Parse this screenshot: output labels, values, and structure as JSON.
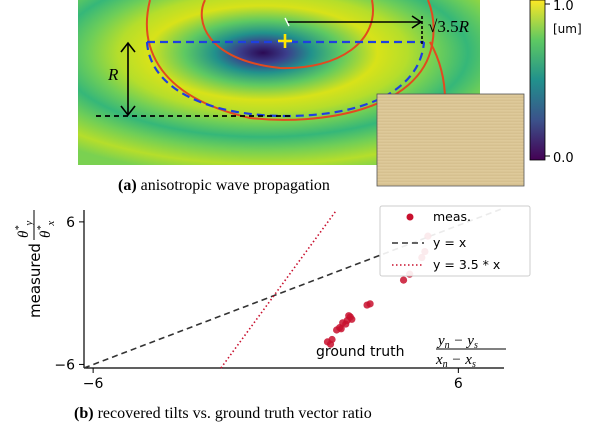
{
  "panel_a": {
    "label": "(a)",
    "caption": "anisotropic wave propagation",
    "annotation_sqrt": "√3.5",
    "annotation_sqrt_r": "R",
    "annotation_r": "R",
    "colorbar": {
      "max_label": "1.0",
      "min_label": "0.0",
      "unit": "[um]",
      "colors": [
        "#440154",
        "#3b528b",
        "#21918c",
        "#5ec962",
        "#fde725"
      ]
    }
  },
  "panel_b": {
    "label": "(b)",
    "caption": "recovered tilts vs. ground truth vector ratio",
    "ylabel_prefix": "measured",
    "xlabel_prefix": "ground truth",
    "chart_data": {
      "type": "scatter",
      "xlim": [
        -6.3,
        7.5
      ],
      "ylim": [
        -6.3,
        7.0
      ],
      "xticks": [
        -6,
        6
      ],
      "yticks": [
        -6,
        6
      ],
      "xtick_labels": [
        "−6",
        "6"
      ],
      "ytick_labels": [
        "−6",
        "6"
      ],
      "grid": false,
      "legend_position": "top-right",
      "series": [
        {
          "name": "meas.",
          "kind": "points",
          "color": "#c8102e",
          "x": [
            1.7,
            1.8,
            1.85,
            2.0,
            2.1,
            2.15,
            2.2,
            2.3,
            2.35,
            2.4,
            2.45,
            2.5,
            3.0,
            3.1,
            4.2,
            4.4,
            4.8,
            4.9,
            5.0
          ],
          "y": [
            -4.1,
            -4.3,
            -3.9,
            -3.1,
            -2.9,
            -3.0,
            -2.5,
            -2.6,
            -2.3,
            -1.9,
            -2.0,
            -2.2,
            -1.0,
            -0.9,
            1.1,
            1.6,
            3.0,
            3.5,
            4.8
          ]
        },
        {
          "name": "y = x",
          "kind": "line",
          "color": "#333333",
          "dash": "6,4",
          "x": [
            -6.3,
            7.5
          ],
          "y": [
            -6.3,
            7.5
          ]
        },
        {
          "name": "y = 3.5 * x",
          "kind": "line",
          "color": "#c8102e",
          "dash": "1.5,2.5",
          "x": [
            -1.8,
            2.0
          ],
          "y": [
            -6.3,
            7.0
          ]
        }
      ]
    }
  }
}
